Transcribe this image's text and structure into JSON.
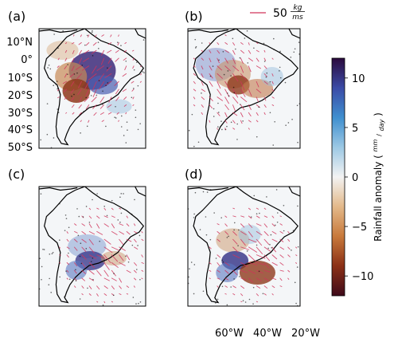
{
  "panels": [
    {
      "id": "a",
      "label": "(a)"
    },
    {
      "id": "b",
      "label": "(b)"
    },
    {
      "id": "c",
      "label": "(c)"
    },
    {
      "id": "d",
      "label": "(d)"
    }
  ],
  "reference_arrow": {
    "value": "50",
    "unit_numerator": "kg",
    "unit_denominator": "ms",
    "color": "#d0345a"
  },
  "lat_labels": [
    "10°N",
    "0°",
    "10°S",
    "20°S",
    "30°S",
    "40°S",
    "50°S"
  ],
  "lon_labels": [
    "60°W",
    "40°W",
    "20°W"
  ],
  "colorbar": {
    "label": "Rainfall anomaly",
    "unit_numerator": "mm",
    "unit_denominator": "day",
    "ticks": [
      "10",
      "5",
      "0",
      "−5",
      "−10"
    ],
    "colors": [
      "#2b0a3d",
      "#3b4ba6",
      "#3f8fcf",
      "#9cc8e4",
      "#f3f3f3",
      "#e3b98a",
      "#c8793b",
      "#8b3016",
      "#3f0a1a"
    ]
  },
  "chart_data": {
    "type": "heatmap",
    "title": "",
    "description_variable": "Rainfall anomaly (mm/day) with moisture flux vectors",
    "colorbar_range": [
      -12,
      12
    ],
    "colorbar_ticks": [
      10,
      5,
      0,
      -5,
      -10
    ],
    "latitude_ticks": [
      "10°N",
      "0°",
      "10°S",
      "20°S",
      "30°S",
      "40°S",
      "50°S"
    ],
    "longitude_ticks": [
      "60°W",
      "40°W",
      "20°W"
    ],
    "reference_vector": {
      "magnitude": 50,
      "unit": "kg/ms"
    },
    "panels": [
      "(a)",
      "(b)",
      "(c)",
      "(d)"
    ]
  }
}
